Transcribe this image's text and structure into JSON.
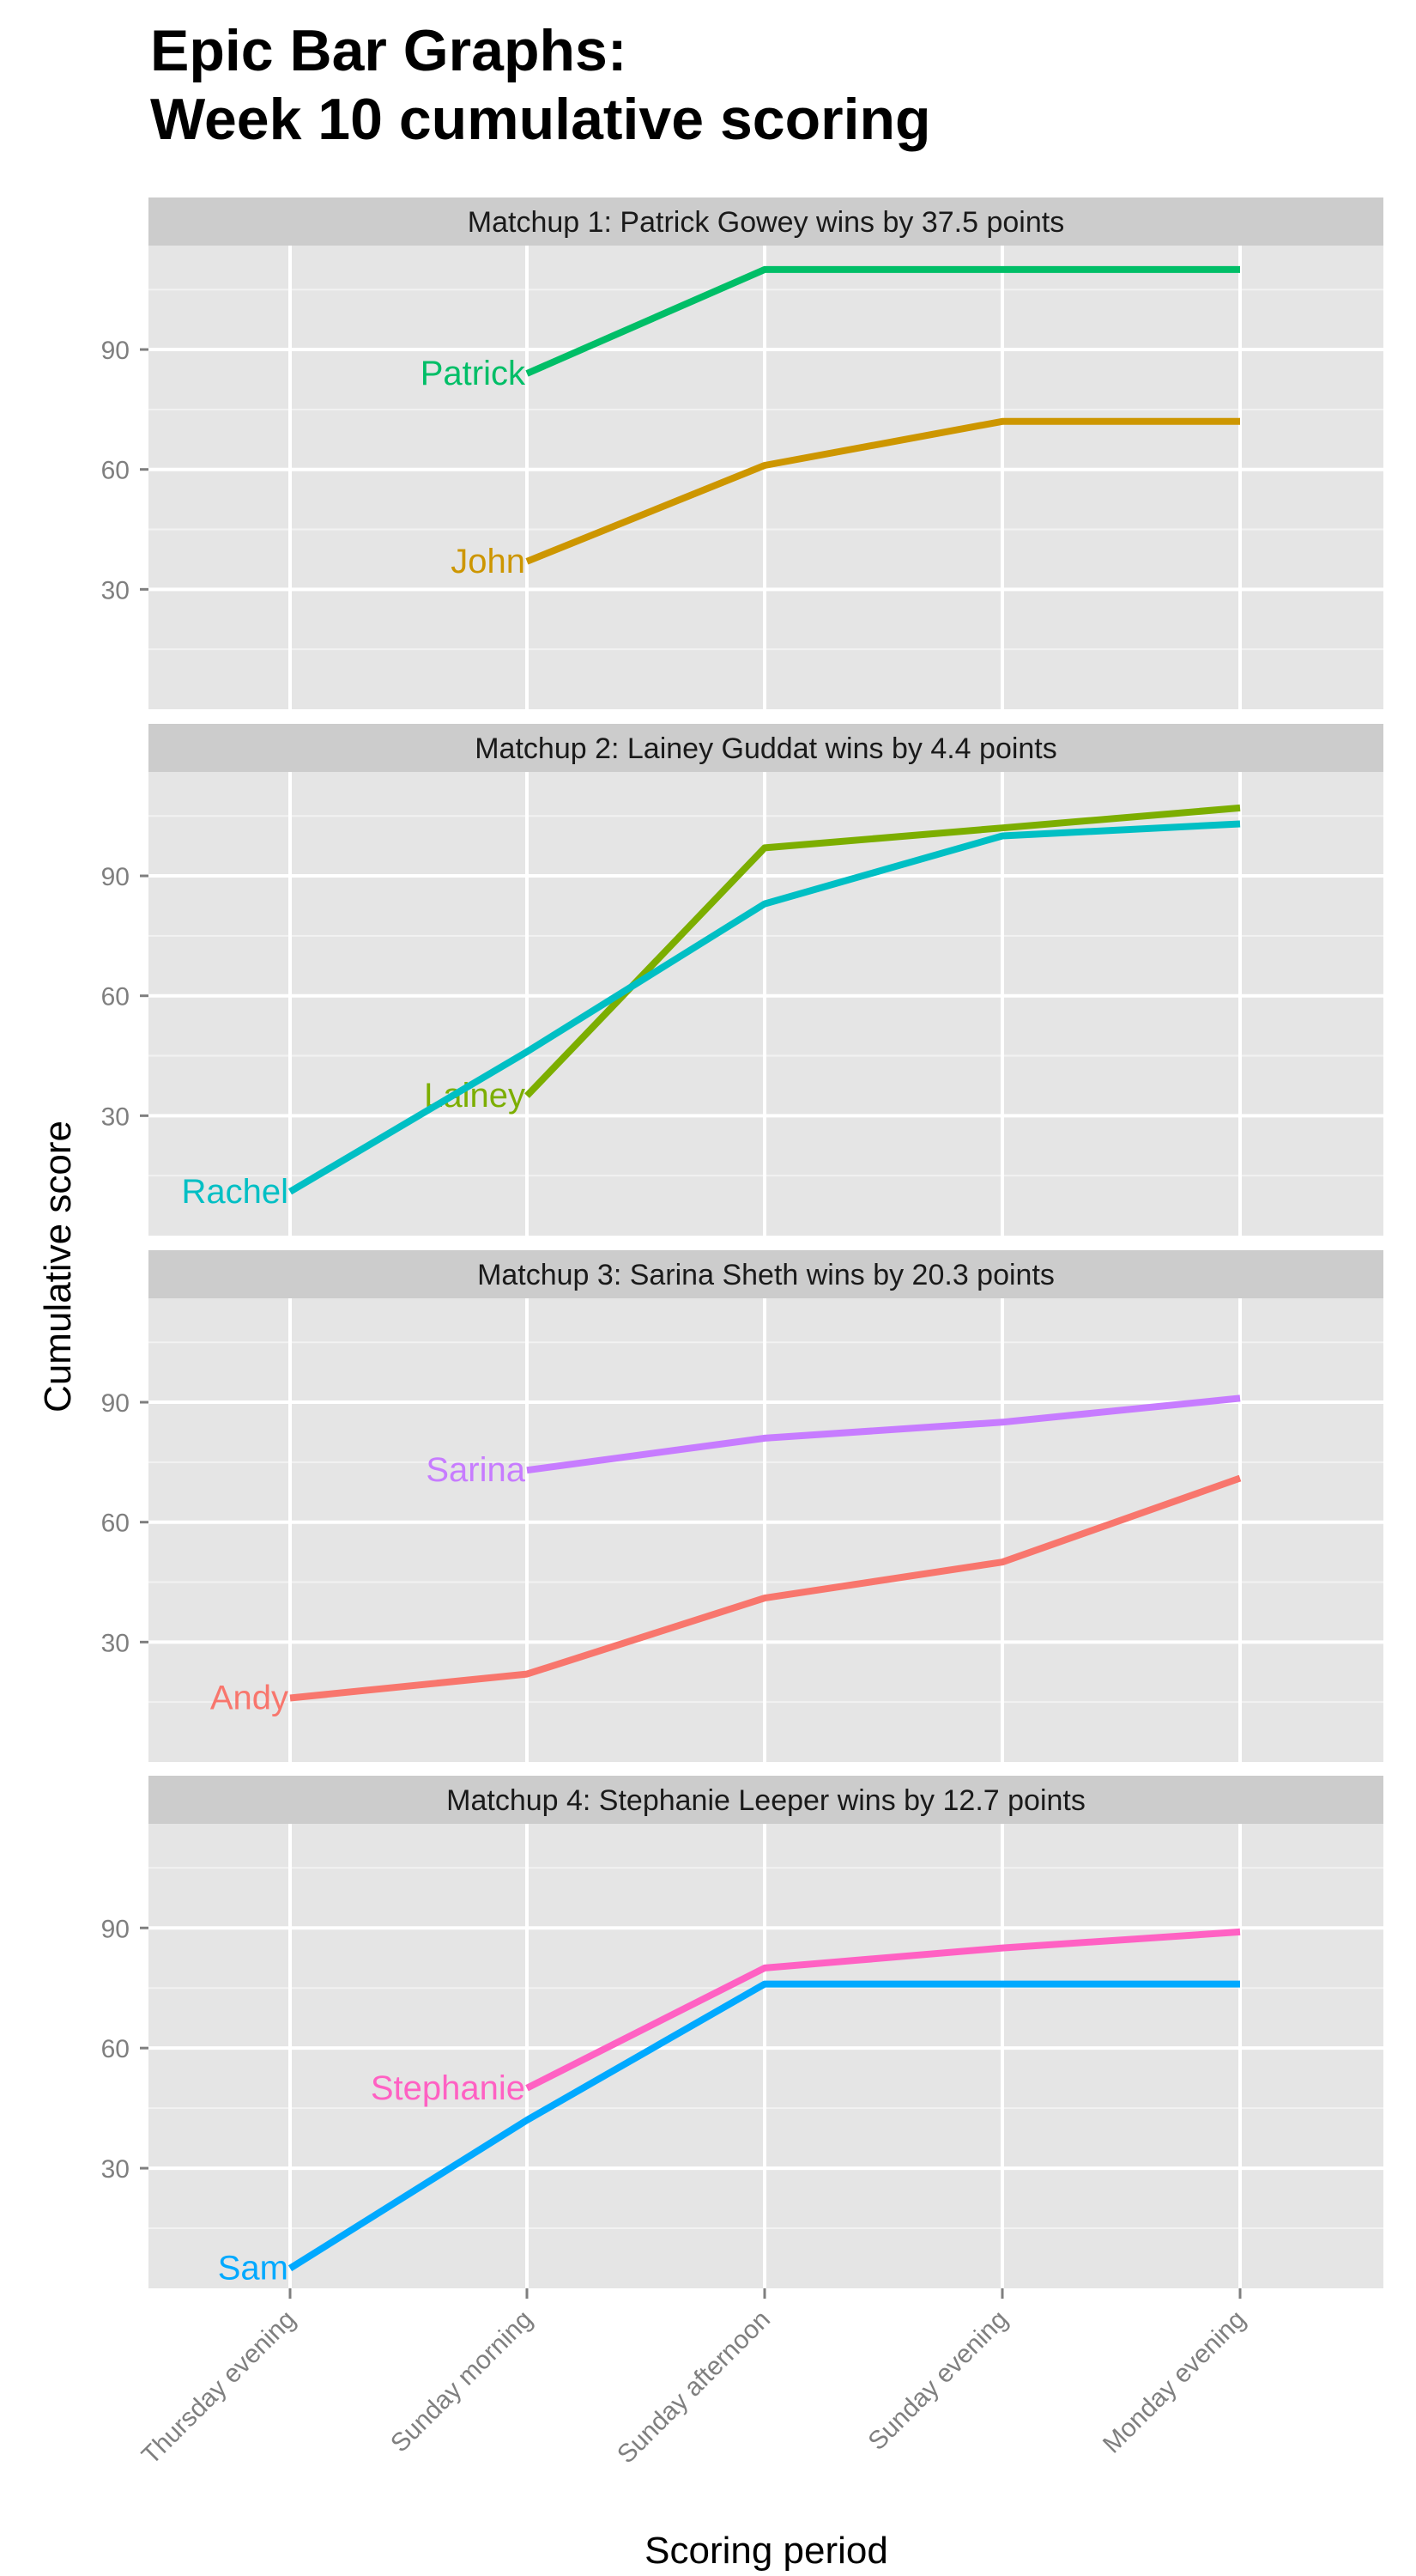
{
  "title_lines": [
    "Epic Bar Graphs:",
    "Week 10 cumulative scoring"
  ],
  "colors": {
    "panel_bg": "#e5e5e5",
    "strip_bg": "#cccccc",
    "grid_major": "#ffffff",
    "grid_minor": "#f2f2f2"
  },
  "chart_data": {
    "type": "line",
    "xlabel": "Scoring period",
    "ylabel": "Cumulative score",
    "x": [
      "Thursday evening",
      "Sunday morning",
      "Sunday afternoon",
      "Sunday evening",
      "Monday evening"
    ],
    "ylim": [
      0,
      116
    ],
    "yticks": [
      30,
      60,
      90
    ],
    "grid": true,
    "facets": [
      {
        "strip": "Matchup 1: Patrick Gowey wins by 37.5 points",
        "series": [
          {
            "name": "Patrick",
            "color": "#00be67",
            "values": [
              null,
              84,
              110,
              110,
              110
            ]
          },
          {
            "name": "John",
            "color": "#cd9600",
            "values": [
              null,
              37,
              61,
              72,
              72
            ]
          }
        ]
      },
      {
        "strip": "Matchup 2: Lainey Guddat wins by 4.4 points",
        "series": [
          {
            "name": "Lainey",
            "color": "#7cae00",
            "values": [
              null,
              35,
              97,
              102,
              107
            ]
          },
          {
            "name": "Rachel",
            "color": "#00bfc4",
            "values": [
              11,
              46,
              83,
              100,
              103
            ]
          }
        ]
      },
      {
        "strip": "Matchup 3: Sarina Sheth wins by 20.3 points",
        "series": [
          {
            "name": "Sarina",
            "color": "#c77cff",
            "values": [
              null,
              73,
              81,
              85,
              91
            ]
          },
          {
            "name": "Andy",
            "color": "#f8766d",
            "values": [
              16,
              22,
              41,
              50,
              71
            ]
          }
        ]
      },
      {
        "strip": "Matchup 4: Stephanie Leeper wins by 12.7 points",
        "series": [
          {
            "name": "Stephanie",
            "color": "#ff61c3",
            "values": [
              null,
              50,
              80,
              85,
              89
            ]
          },
          {
            "name": "Sam",
            "color": "#00a9ff",
            "values": [
              5,
              42,
              76,
              76,
              76
            ]
          }
        ]
      }
    ]
  }
}
